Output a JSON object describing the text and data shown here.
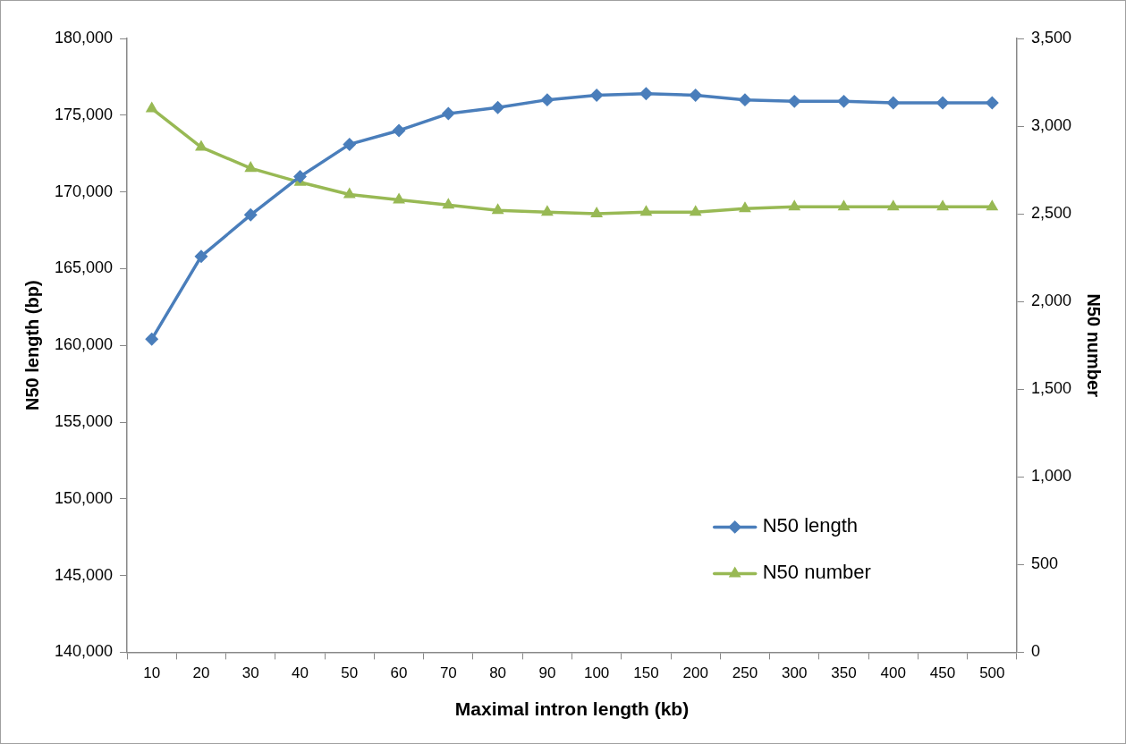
{
  "chart_data": {
    "type": "line",
    "xlabel": "Maximal intron length (kb)",
    "ylabel": "N50 length (bp)",
    "y2label": "N50 number",
    "categories": [
      "10",
      "20",
      "30",
      "40",
      "50",
      "60",
      "70",
      "80",
      "90",
      "100",
      "150",
      "200",
      "250",
      "300",
      "350",
      "400",
      "450",
      "500"
    ],
    "series": [
      {
        "name": "N50 length",
        "color": "#4a7ebb",
        "marker": "diamond",
        "values": [
          160400,
          165800,
          168500,
          171000,
          173100,
          174000,
          175100,
          175500,
          176000,
          176300,
          176400,
          176300,
          176000,
          175900,
          175900,
          175800,
          175800,
          175800
        ]
      },
      {
        "name": "N50 number",
        "color": "#98b954",
        "marker": "triangle",
        "axis": "y2",
        "values": [
          3100,
          2880,
          2760,
          2680,
          2610,
          2580,
          2550,
          2520,
          2510,
          2500,
          2510,
          2510,
          2530,
          2540,
          2540,
          2540,
          2540,
          2540
        ]
      }
    ],
    "ylim": [
      140000,
      180000
    ],
    "yticks": [
      {
        "value": 140000,
        "label": "140,000"
      },
      {
        "value": 145000,
        "label": "145,000"
      },
      {
        "value": 150000,
        "label": "150,000"
      },
      {
        "value": 155000,
        "label": "155,000"
      },
      {
        "value": 160000,
        "label": "160,000"
      },
      {
        "value": 165000,
        "label": "165,000"
      },
      {
        "value": 170000,
        "label": "170,000"
      },
      {
        "value": 175000,
        "label": "175,000"
      },
      {
        "value": 180000,
        "label": "180,000"
      }
    ],
    "y2lim": [
      0,
      3500
    ],
    "y2ticks": [
      0,
      500,
      {
        "value": 1000,
        "label": "1,000"
      },
      {
        "value": 1500,
        "label": "1,500"
      },
      {
        "value": 2000,
        "label": "2,000"
      },
      {
        "value": 2500,
        "label": "2,500"
      },
      {
        "value": 3000,
        "label": "3,000"
      },
      {
        "value": 3500,
        "label": "3,500"
      }
    ],
    "grid": false,
    "legend": "bottom right",
    "line_style": "solid"
  }
}
